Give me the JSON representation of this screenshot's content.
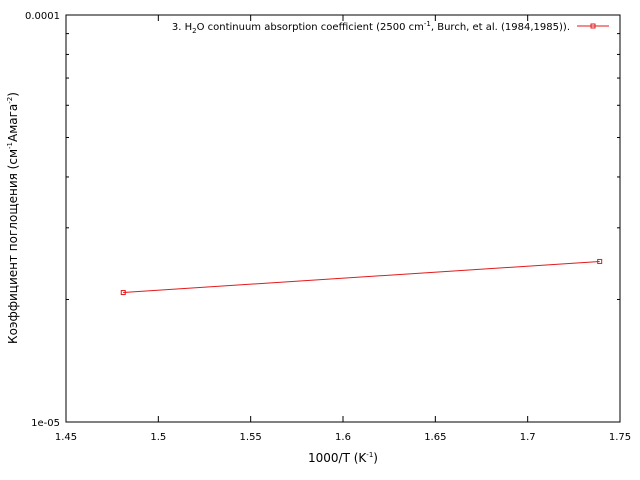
{
  "chart_data": {
    "type": "line",
    "title": "",
    "xlabel": {
      "base": "1000/T (K",
      "sup": "-1",
      "tail": ")"
    },
    "ylabel": {
      "base": "Коэффициент поглощения (см",
      "sup1": "-1",
      "mid": "Амага",
      "sup2": "-2",
      "tail": ")"
    },
    "xlim": [
      1.45,
      1.75
    ],
    "ylim": [
      1e-05,
      0.0001
    ],
    "yscale": "log",
    "xticks": [
      "1.45",
      "1.5",
      "1.55",
      "1.6",
      "1.65",
      "1.7",
      "1.75"
    ],
    "xtick_values": [
      1.45,
      1.5,
      1.55,
      1.6,
      1.65,
      1.7,
      1.75
    ],
    "yticks": [
      "1e-05",
      "0.0001"
    ],
    "ytick_values": [
      1e-05,
      0.0001
    ],
    "grid": false,
    "legend_position": "top-right",
    "series": [
      {
        "name": {
          "p1": "3. H",
          "sub": "2",
          "p2": "O continuum absorption coefficient (2500 cm",
          "sup": "-1",
          "p3": ", Burch, et al. (1984,1985))."
        },
        "color": "#e31a1c",
        "marker": "square",
        "x": [
          1.481,
          1.739
        ],
        "y": [
          2.08e-05,
          2.48e-05
        ]
      }
    ]
  }
}
